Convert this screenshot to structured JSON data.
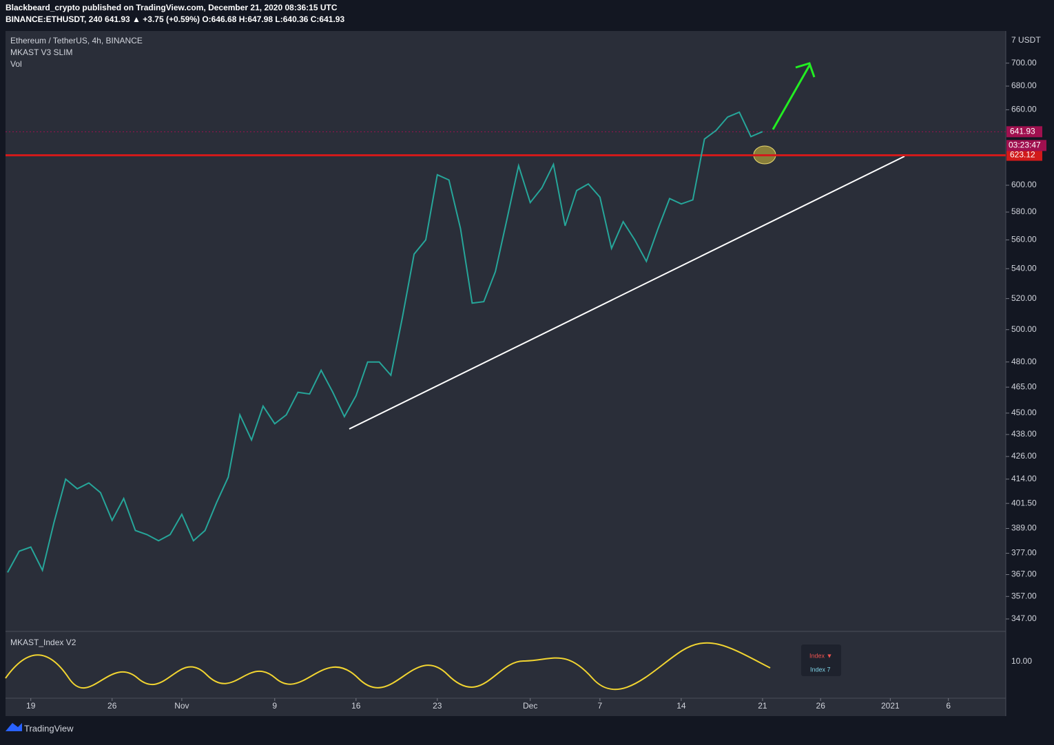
{
  "header": {
    "publisher": "Blackbeard_crypto published on TradingView.com, December 21, 2020 08:36:15 UTC",
    "symbol_line": "BINANCE:ETHUSDT, 240  641.93 ▲ +3.75 (+0.59%) O:646.68 H:647.98 L:640.36 C:641.93"
  },
  "legend": [
    "Ethereum / TetherUS, 4h, BINANCE",
    "MKAST V3 SLIM",
    "Vol"
  ],
  "indicator": {
    "title": "MKAST_Index V2",
    "axis_label": "10.00",
    "badge_1": "Index ▼",
    "badge_2": "Index 7"
  },
  "footer": "TradingView",
  "chart_data": {
    "type": "line",
    "axis_unit": "7 USDT",
    "log_scale": true,
    "color": "#26a69a",
    "categories": [
      null,
      null,
      "19",
      null,
      null,
      null,
      null,
      null,
      null,
      "26",
      null,
      null,
      null,
      null,
      null,
      "Nov",
      null,
      null,
      null,
      null,
      null,
      null,
      null,
      "9",
      null,
      null,
      null,
      null,
      null,
      null,
      "16",
      null,
      null,
      null,
      null,
      null,
      null,
      "23",
      null,
      null,
      null,
      null,
      null,
      null,
      null,
      "Dec",
      null,
      null,
      null,
      null,
      null,
      "7",
      null,
      null,
      null,
      null,
      null,
      null,
      "14",
      null,
      null,
      null,
      null,
      null,
      null,
      "21",
      null,
      null,
      null,
      null,
      "26",
      null,
      null,
      null,
      null,
      null,
      "2021",
      null,
      null,
      null,
      null,
      "6",
      null
    ],
    "values": [
      368,
      378,
      380,
      369,
      392,
      414,
      409,
      412,
      407,
      393,
      404,
      388,
      386,
      383,
      386,
      396,
      383,
      388,
      402,
      415,
      449,
      435,
      454,
      444,
      449,
      462,
      461,
      475,
      462,
      448,
      460,
      480,
      480,
      472,
      508,
      550,
      560,
      608,
      604,
      568,
      517,
      518,
      538,
      575,
      615,
      587,
      598,
      616,
      570,
      596,
      601,
      591,
      554,
      573,
      560,
      545,
      568,
      590,
      586,
      589,
      636,
      643,
      654,
      658,
      638,
      642,
      null,
      null,
      null,
      null,
      null,
      null,
      null,
      null,
      null,
      null,
      null,
      null,
      null,
      null,
      null,
      null,
      null
    ],
    "ylim": [
      341.6,
      729
    ],
    "yticks": [
      {
        "value": 347,
        "label": "347.00"
      },
      {
        "value": 357,
        "label": "357.00"
      },
      {
        "value": 367,
        "label": "367.00"
      },
      {
        "value": 377,
        "label": "377.00"
      },
      {
        "value": 389,
        "label": "389.00"
      },
      {
        "value": 401.5,
        "label": "401.50"
      },
      {
        "value": 414,
        "label": "414.00"
      },
      {
        "value": 426,
        "label": "426.00"
      },
      {
        "value": 438,
        "label": "438.00"
      },
      {
        "value": 450,
        "label": "450.00"
      },
      {
        "value": 465,
        "label": "465.00"
      },
      {
        "value": 480,
        "label": "480.00"
      },
      {
        "value": 500,
        "label": "500.00"
      },
      {
        "value": 520,
        "label": "520.00"
      },
      {
        "value": 540,
        "label": "540.00"
      },
      {
        "value": 560,
        "label": "560.00"
      },
      {
        "value": 580,
        "label": "580.00"
      },
      {
        "value": 600,
        "label": "600.00"
      },
      {
        "value": 660,
        "label": "660.00"
      },
      {
        "value": 680,
        "label": "680.00"
      },
      {
        "value": 700,
        "label": "700.00"
      }
    ],
    "annotations": [
      {
        "value": 641.93,
        "label": "641.93",
        "color": "#a0104f"
      },
      {
        "value": 623.12,
        "label": "623.12",
        "color": "#d11a1a"
      }
    ],
    "countdown": "03:23:47"
  }
}
